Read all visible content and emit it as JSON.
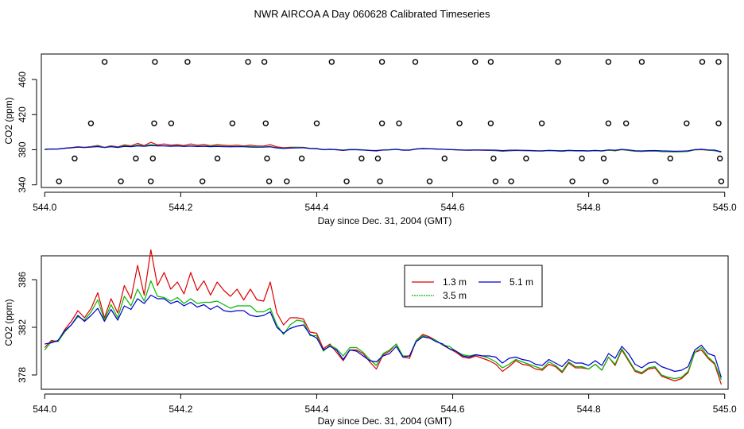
{
  "title": "NWR AIRCOA A  Day 060628  Calibrated Timeseries",
  "colors": {
    "series_1_3": "#dd0000",
    "series_3_5": "#00bb00",
    "series_5_1": "#0000cc",
    "axis": "#000000",
    "background": "#ffffff"
  },
  "chart_data": [
    {
      "type": "scatter",
      "title": "NWR AIRCOA A  Day 060628  Calibrated Timeseries",
      "xlabel": "Day since Dec. 31, 2004 (GMT)",
      "ylabel": "CO2 (ppm)",
      "xlim": [
        543.995,
        545.005
      ],
      "ylim": [
        337,
        489
      ],
      "x_ticks": [
        544.0,
        544.2,
        544.4,
        544.6,
        544.8,
        545.0
      ],
      "x_tick_labels": [
        "544.0",
        "544.2",
        "544.4",
        "544.6",
        "544.8",
        "545.0"
      ],
      "y_ticks": [
        340,
        380,
        420,
        460
      ],
      "y_tick_labels": [
        "340",
        "380",
        "420",
        "460"
      ],
      "calibration_points": {
        "levels": [
          480,
          410,
          370,
          344
        ],
        "x": [
          [
            544.088,
            544.162,
            544.21,
            544.299,
            544.323,
            544.422,
            544.496,
            544.545,
            544.633,
            544.656,
            544.755,
            544.829,
            544.878,
            544.967,
            544.991
          ],
          [
            544.068,
            544.161,
            544.186,
            544.276,
            544.325,
            544.4,
            544.496,
            544.521,
            544.61,
            544.656,
            544.731,
            544.829,
            544.855,
            544.944,
            544.991
          ],
          [
            544.044,
            544.134,
            544.159,
            544.254,
            544.327,
            544.378,
            544.466,
            544.49,
            544.588,
            544.66,
            544.708,
            544.79,
            544.822,
            544.92,
            544.993
          ],
          [
            544.021,
            544.112,
            544.156,
            544.232,
            544.33,
            544.356,
            544.444,
            544.493,
            544.566,
            544.663,
            544.686,
            544.776,
            544.825,
            544.898,
            544.995
          ]
        ]
      },
      "series": [
        {
          "name": "1.3 m",
          "color": "#dd0000",
          "values": [
            380.3,
            380.9,
            380.8,
            381.8,
            382.5,
            383.4,
            382.8,
            383.6,
            384.9,
            382.8,
            384.4,
            383.2,
            385.5,
            384.4,
            387.2,
            384.7,
            388.5,
            385.5,
            386.6,
            385.2,
            385.8,
            384.8,
            386.6,
            385.1,
            385.9,
            384.7,
            385.8,
            385.1,
            384.6,
            385.2,
            384.3,
            385.2,
            384.3,
            384.2,
            385.8,
            383.2,
            382.2,
            382.8,
            382.8,
            382.7,
            381.6,
            381.5,
            380.2,
            380.6,
            379.9,
            379.2,
            380.1,
            380.1,
            379.8,
            379.1,
            378.5,
            379.7,
            380.0,
            380.6,
            379.5,
            379.4,
            380.9,
            381.4,
            381.2,
            380.9,
            380.5,
            380.2,
            379.9,
            379.5,
            379.4,
            379.6,
            379.4,
            379.2,
            378.9,
            378.3,
            378.7,
            379.2,
            378.9,
            378.8,
            378.5,
            378.4,
            378.9,
            378.7,
            378.2,
            379.0,
            378.6,
            378.6,
            378.5,
            378.9,
            378.4,
            379.5,
            378.8,
            380.1,
            379.2,
            378.3,
            378.1,
            378.5,
            378.6,
            377.9,
            377.7,
            377.5,
            377.7,
            378.2,
            379.9,
            380.1,
            379.4,
            378.9,
            377.2
          ]
        },
        {
          "name": "3.5 m",
          "color": "#00bb00",
          "values": [
            380.1,
            380.8,
            380.8,
            381.6,
            382.2,
            382.9,
            382.6,
            383.3,
            384.3,
            382.6,
            383.9,
            382.8,
            384.6,
            383.8,
            385.2,
            384.2,
            385.9,
            384.6,
            384.5,
            384.2,
            384.5,
            384.0,
            384.4,
            384.0,
            384.1,
            384.1,
            384.2,
            383.9,
            383.6,
            383.8,
            383.8,
            383.8,
            383.3,
            383.3,
            383.6,
            382.2,
            381.4,
            382.2,
            382.6,
            382.5,
            381.3,
            381.3,
            380.0,
            380.5,
            380.2,
            379.6,
            380.3,
            380.3,
            379.9,
            379.3,
            378.8,
            379.8,
            380.1,
            380.6,
            379.6,
            379.6,
            380.9,
            381.3,
            381.1,
            380.9,
            380.5,
            380.4,
            380.0,
            379.7,
            379.6,
            379.7,
            379.6,
            379.4,
            379.1,
            378.6,
            378.9,
            379.3,
            379.1,
            378.9,
            378.7,
            378.5,
            379.1,
            378.8,
            378.3,
            379.1,
            378.7,
            378.7,
            378.5,
            378.9,
            378.4,
            379.5,
            378.9,
            380.2,
            379.3,
            378.4,
            378.2,
            378.6,
            378.7,
            378.0,
            377.8,
            377.7,
            377.8,
            378.3,
            379.9,
            380.3,
            379.5,
            379.0,
            377.6
          ]
        },
        {
          "name": "5.1 m",
          "color": "#0000cc",
          "values": [
            380.6,
            380.7,
            380.9,
            381.7,
            382.2,
            383.0,
            382.5,
            383.0,
            383.6,
            382.5,
            383.5,
            382.6,
            383.8,
            383.5,
            384.4,
            384.0,
            384.7,
            384.4,
            384.4,
            384.0,
            384.2,
            383.8,
            384.1,
            383.7,
            383.9,
            383.5,
            383.8,
            383.4,
            383.3,
            383.4,
            383.4,
            383.0,
            382.9,
            383.0,
            383.3,
            382.0,
            381.5,
            381.9,
            382.1,
            382.2,
            381.4,
            381.1,
            380.1,
            380.4,
            380.1,
            379.3,
            380.1,
            380.0,
            379.6,
            379.2,
            379.1,
            379.6,
            379.8,
            380.4,
            379.5,
            379.6,
            380.8,
            381.2,
            381.1,
            380.8,
            380.6,
            380.2,
            380.0,
            379.6,
            379.5,
            379.7,
            379.6,
            379.6,
            379.5,
            379.0,
            379.4,
            379.5,
            379.3,
            379.2,
            378.9,
            378.8,
            379.3,
            379.0,
            378.7,
            379.3,
            379.0,
            379.0,
            378.8,
            379.2,
            378.8,
            379.8,
            379.4,
            380.4,
            379.8,
            378.9,
            378.6,
            379.0,
            379.1,
            378.7,
            378.5,
            378.3,
            378.4,
            378.7,
            380.1,
            380.5,
            379.8,
            379.6,
            377.8
          ]
        }
      ]
    },
    {
      "type": "line",
      "xlabel": "Day since Dec. 31, 2004 (GMT)",
      "ylabel": "CO2 (ppm)",
      "xlim": [
        543.995,
        545.005
      ],
      "ylim": [
        376.8,
        388.0
      ],
      "x_ticks": [
        544.0,
        544.2,
        544.4,
        544.6,
        544.8,
        545.0
      ],
      "x_tick_labels": [
        "544.0",
        "544.2",
        "544.4",
        "544.6",
        "544.8",
        "545.0"
      ],
      "y_ticks": [
        378,
        382,
        386
      ],
      "y_tick_labels": [
        "378",
        "382",
        "386"
      ],
      "legend": {
        "position": "top-center",
        "entries": [
          "1.3 m",
          "3.5 m",
          "5.1 m"
        ]
      },
      "series_ref": "same as chart_data[0].series"
    }
  ]
}
